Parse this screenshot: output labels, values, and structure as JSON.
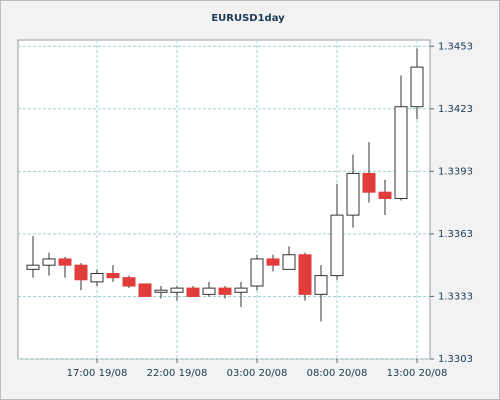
{
  "chart_data": {
    "type": "candlestick",
    "title": "EURUSD1day",
    "categories": [
      null,
      null,
      null,
      null,
      "17:00 19/08",
      null,
      null,
      null,
      null,
      "22:00 19/08",
      null,
      null,
      null,
      null,
      "03:00 20/08",
      null,
      null,
      null,
      null,
      "08:00 20/08",
      null,
      null,
      null,
      null,
      "13:00 20/08"
    ],
    "open": [
      1.3346,
      1.3348,
      1.3351,
      1.3348,
      1.334,
      1.3344,
      1.3342,
      1.3339,
      1.3335,
      1.3335,
      1.3337,
      1.3334,
      1.3337,
      1.3335,
      1.3338,
      1.3351,
      1.3346,
      1.3353,
      1.3334,
      1.3343,
      1.3372,
      1.3392,
      1.3383,
      1.338,
      1.3424
    ],
    "high": [
      1.3362,
      1.3354,
      1.3352,
      1.3349,
      1.3346,
      1.3348,
      1.3343,
      1.3339,
      1.3338,
      1.3338,
      1.3338,
      1.334,
      1.3338,
      1.334,
      1.3353,
      1.3353,
      1.3357,
      1.3354,
      1.3348,
      1.3387,
      1.3401,
      1.3407,
      1.3389,
      1.3439,
      1.3452
    ],
    "low": [
      1.3342,
      1.3343,
      1.3342,
      1.3336,
      1.3338,
      1.334,
      1.3337,
      1.3333,
      1.3332,
      1.3331,
      1.3333,
      1.3333,
      1.3332,
      1.3328,
      1.3336,
      1.3345,
      1.3346,
      1.3331,
      1.3321,
      1.3341,
      1.3366,
      1.3378,
      1.3372,
      1.3379,
      1.3418
    ],
    "close": [
      1.3348,
      1.3351,
      1.3348,
      1.3341,
      1.3344,
      1.3342,
      1.3338,
      1.3333,
      1.3336,
      1.3337,
      1.3333,
      1.3337,
      1.3334,
      1.3337,
      1.3351,
      1.3348,
      1.3353,
      1.3334,
      1.3343,
      1.3372,
      1.3392,
      1.3383,
      1.338,
      1.3424,
      1.3443
    ],
    "up_color": "#ffffff",
    "down_color": "#e03c3c",
    "ylim": [
      1.3303,
      1.3456
    ],
    "yticks": [
      1.3303,
      1.3333,
      1.3363,
      1.3393,
      1.3423,
      1.3453
    ],
    "grid": true
  }
}
